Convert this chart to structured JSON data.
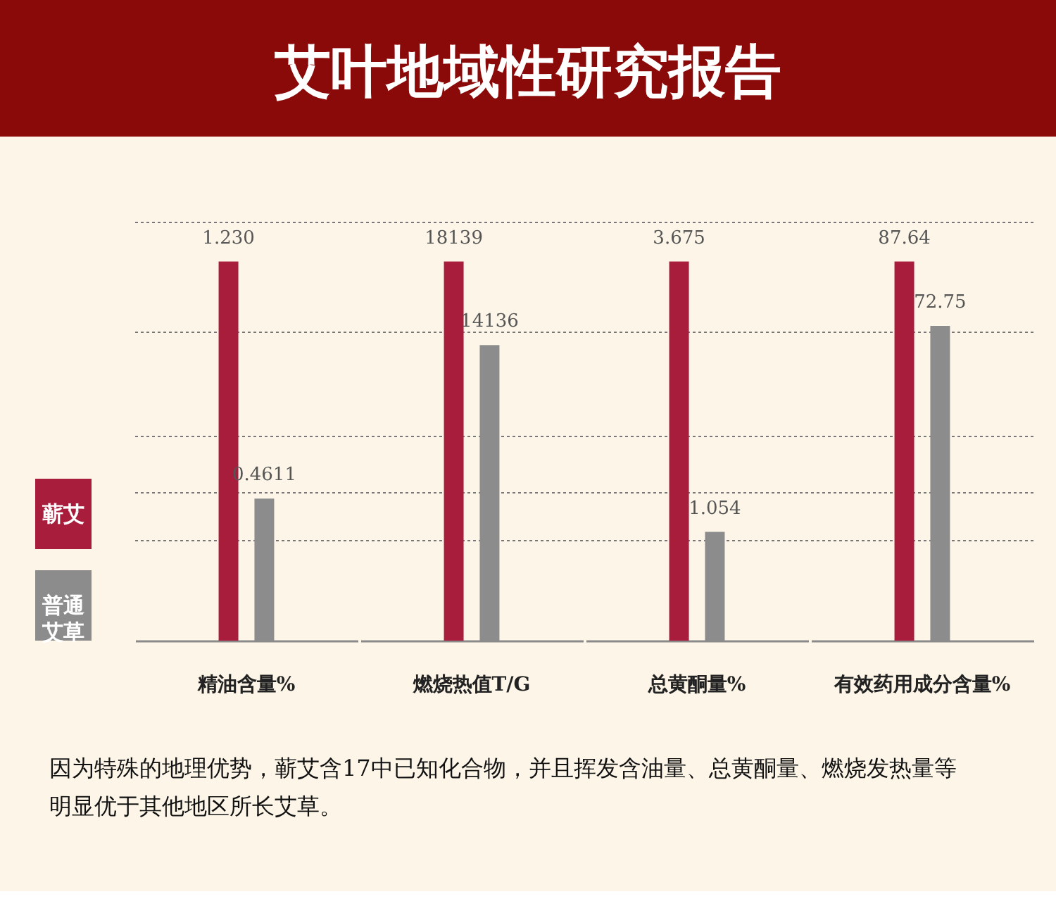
{
  "chart_data": [
    {
      "type": "bar",
      "title": "艾叶地域性研究报告",
      "categories": [
        "精油含量%"
      ],
      "series": [
        {
          "name": "蕲艾",
          "color": "#a81c3c",
          "values": [
            1.23
          ],
          "value_labels": [
            "1.230"
          ]
        },
        {
          "name": "普通艾草",
          "color": "#8c8c8c",
          "values": [
            0.4611
          ],
          "value_labels": [
            "0.4611"
          ]
        }
      ],
      "legend": "left",
      "grid": "y",
      "tick_labels": "x",
      "annotations": [
        "因为特殊的地理优势，蕲艾含17中已知化合物，并且挥发含油量、总黄酮量、燃烧发热量等明显优于其他地区所长艾草。"
      ]
    },
    {
      "type": "bar",
      "categories": [
        "燃烧热值T/G"
      ],
      "series": [
        {
          "color": "#a81c3c",
          "values": [
            18139
          ],
          "value_labels": [
            "18139"
          ]
        },
        {
          "color": "#8c8c8c",
          "values": [
            14136
          ],
          "value_labels": [
            "14136"
          ]
        }
      ],
      "grid": "y",
      "tick_labels": "x"
    },
    {
      "type": "bar",
      "categories": [
        "总黄酮量%"
      ],
      "series": [
        {
          "color": "#a81c3c",
          "values": [
            3.675
          ],
          "value_labels": [
            "3.675"
          ]
        },
        {
          "color": "#8c8c8c",
          "values": [
            1.054
          ],
          "value_labels": [
            "1.054"
          ]
        }
      ],
      "grid": "y",
      "tick_labels": "x"
    },
    {
      "type": "bar",
      "categories": [
        "有效药用成分含量%"
      ],
      "series": [
        {
          "color": "#a81c3c",
          "values": [
            87.64
          ],
          "value_labels": [
            "87.64"
          ]
        },
        {
          "color": "#8c8c8c",
          "values": [
            72.75
          ],
          "value_labels": [
            "72.75"
          ]
        }
      ],
      "grid": "y",
      "tick_labels": "x"
    }
  ]
}
